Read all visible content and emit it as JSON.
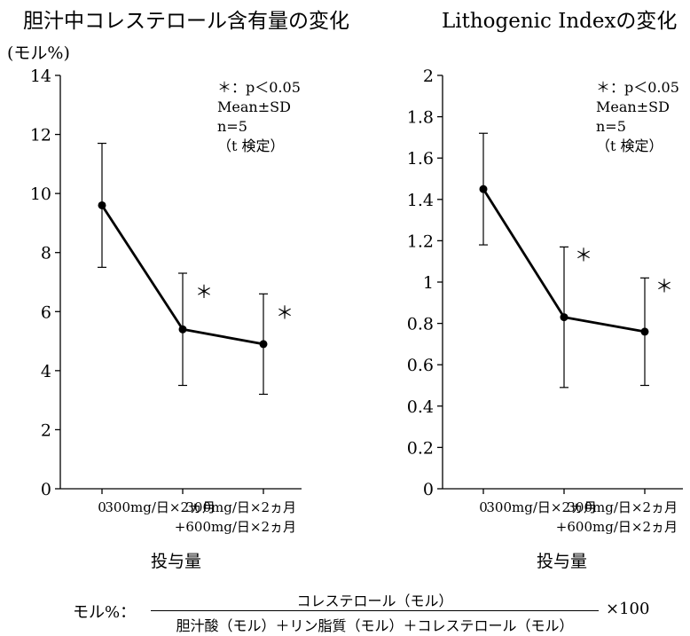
{
  "chart_data": [
    {
      "type": "line",
      "title": "胆汁中コレステロール含有量の変化",
      "ylabel": "(モル%)",
      "xlabel": "投与量",
      "ylim": [
        0,
        14
      ],
      "yticks": [
        "0",
        "2",
        "4",
        "6",
        "8",
        "10",
        "12",
        "14"
      ],
      "categories": [
        "0",
        "300mg/日×2ヵ月",
        "300mg/日×2ヵ月\n+600mg/日×2ヵ月"
      ],
      "series": [
        {
          "values": [
            9.6,
            5.4,
            4.9
          ],
          "error_low": [
            7.5,
            3.5,
            3.2
          ],
          "error_high": [
            11.7,
            7.3,
            6.6
          ]
        }
      ],
      "significance_markers": [
        "",
        "＊",
        "＊"
      ],
      "annotations": [
        "＊：p＜0.05",
        "Mean±SD",
        "n=5",
        "（t 検定）"
      ]
    },
    {
      "type": "line",
      "title": "Lithogenic Indexの変化",
      "ylabel": "",
      "xlabel": "投与量",
      "ylim": [
        0,
        2
      ],
      "yticks": [
        "0",
        "0.2",
        "0.4",
        "0.6",
        "0.8",
        "1",
        "1.2",
        "1.4",
        "1.6",
        "1.8",
        "2"
      ],
      "categories": [
        "0",
        "300mg/日×2ヵ月",
        "300mg/日×2ヵ月\n+600mg/日×2ヵ月"
      ],
      "series": [
        {
          "values": [
            1.45,
            0.83,
            0.76
          ],
          "error_low": [
            1.18,
            0.49,
            0.5
          ],
          "error_high": [
            1.72,
            1.17,
            1.02
          ]
        }
      ],
      "significance_markers": [
        "",
        "＊",
        "＊"
      ],
      "annotations": [
        "＊：p＜0.05",
        "Mean±SD",
        "n=5",
        "（t 検定）"
      ]
    }
  ],
  "formula": {
    "prefix": "モル%：",
    "numerator": "コレステロール（モル）",
    "denominator": "胆汁酸（モル）＋リン脂質（モル）＋コレステロール（モル）",
    "multiplier": "×100"
  }
}
